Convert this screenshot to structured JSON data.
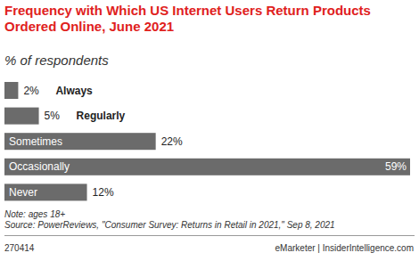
{
  "chart_data": {
    "type": "bar",
    "orientation": "horizontal",
    "title": "Frequency with Which US Internet Users Return Products Ordered Online, June 2021",
    "subtitle": "% of respondents",
    "categories": [
      "Always",
      "Regularly",
      "Sometimes",
      "Occasionally",
      "Never"
    ],
    "values": [
      2,
      5,
      22,
      59,
      12
    ],
    "value_labels": [
      "2%",
      "5%",
      "22%",
      "59%",
      "12%"
    ],
    "data_labels": true,
    "color": "#6b6b6b",
    "xlim": [
      0,
      59
    ],
    "tick_labels": false,
    "grid": false,
    "annotations": [
      "Note: ages 18+",
      "Source: PowerReviews, \"Consumer Survey: Returns in Retail in 2021,\" Sep 8, 2021",
      "270414",
      "eMarketer | InsiderIntelligence.com"
    ]
  }
}
